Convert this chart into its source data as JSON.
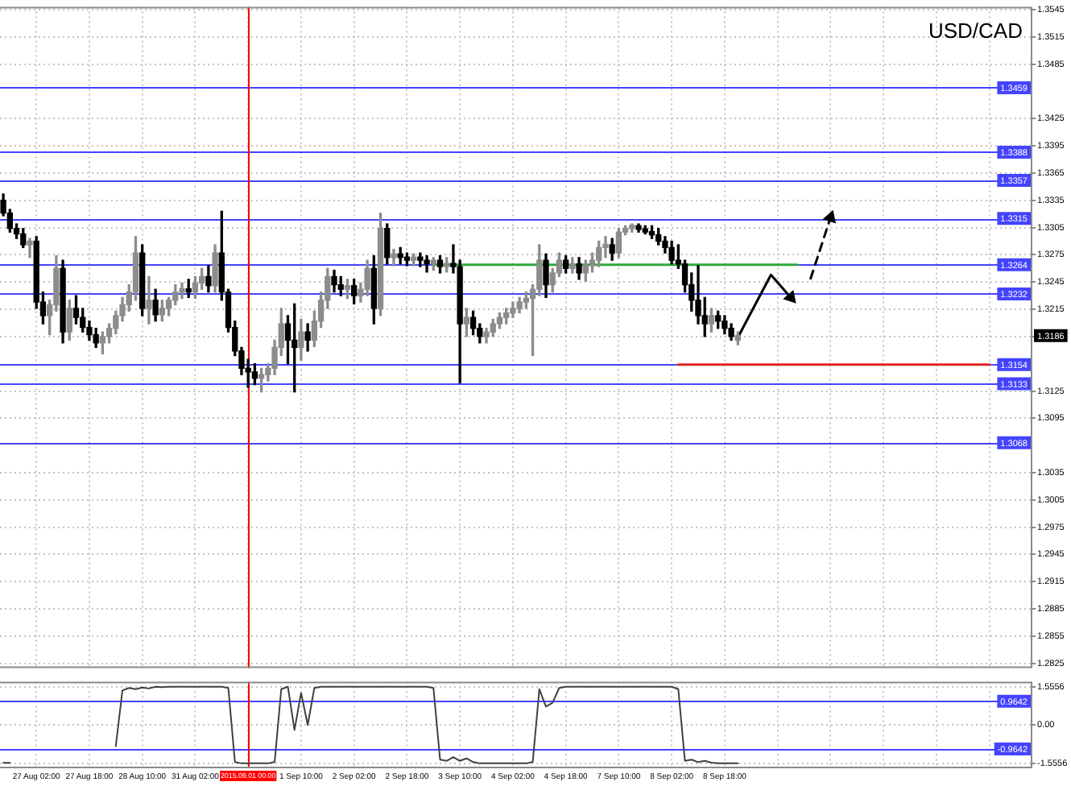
{
  "chart_data": [
    {
      "type": "candlestick",
      "title": "USD/CAD",
      "grid": true,
      "tick_labels": "y",
      "categories": [
        null,
        null,
        null,
        null,
        null,
        "27 Aug 02:00",
        null,
        null,
        null,
        null,
        null,
        null,
        null,
        "27 Aug 18:00",
        null,
        null,
        null,
        null,
        null,
        null,
        null,
        "28 Aug 10:00",
        null,
        null,
        null,
        null,
        null,
        null,
        null,
        "31 Aug 02:00",
        null,
        null,
        null,
        null,
        null,
        null,
        null,
        "2015.09.01 00:00",
        null,
        null,
        null,
        null,
        null,
        null,
        null,
        "1 Sep 10:00",
        null,
        null,
        null,
        null,
        null,
        null,
        null,
        "2 Sep 02:00",
        null,
        null,
        null,
        null,
        null,
        null,
        null,
        "2 Sep 18:00",
        null,
        null,
        null,
        null,
        null,
        null,
        null,
        "3 Sep 10:00",
        null,
        null,
        null,
        null,
        null,
        null,
        null,
        "4 Sep 02:00",
        null,
        null,
        null,
        null,
        null,
        null,
        null,
        "4 Sep 18:00",
        null,
        null,
        null,
        null,
        null,
        null,
        null,
        "7 Sep 10:00",
        null,
        null,
        null,
        null,
        null,
        null,
        null,
        "8 Sep 02:00",
        null,
        null,
        null,
        null,
        null,
        null,
        null,
        "8 Sep 18:00",
        null,
        null,
        null,
        null,
        null,
        null,
        null,
        null,
        null,
        null,
        null,
        null,
        null,
        null,
        null,
        null,
        null,
        null,
        null,
        null,
        null,
        null,
        null,
        null,
        null,
        null,
        null,
        null,
        null,
        null,
        null,
        null,
        null,
        null,
        null,
        null,
        null,
        null,
        null,
        null,
        null,
        null,
        null,
        null,
        null,
        null
      ],
      "ohlc": [
        [
          1.3335,
          1.3342,
          1.3318,
          1.3321
        ],
        [
          1.3321,
          1.3325,
          1.33,
          1.3304
        ],
        [
          1.3304,
          1.3309,
          1.3293,
          1.3298
        ],
        [
          1.3298,
          1.3304,
          1.3283,
          1.3286
        ],
        [
          1.3286,
          1.3293,
          1.3272,
          1.329
        ],
        [
          1.329,
          1.3295,
          1.3216,
          1.3223
        ],
        [
          1.3223,
          1.3234,
          1.3199,
          1.3208
        ],
        [
          1.3208,
          1.3225,
          1.3187,
          1.322
        ],
        [
          1.322,
          1.3274,
          1.3213,
          1.326
        ],
        [
          1.326,
          1.3269,
          1.3178,
          1.319
        ],
        [
          1.319,
          1.3225,
          1.3181,
          1.3216
        ],
        [
          1.3216,
          1.323,
          1.3199,
          1.3206
        ],
        [
          1.3206,
          1.3216,
          1.319,
          1.3195
        ],
        [
          1.3195,
          1.3202,
          1.3181,
          1.3187
        ],
        [
          1.3187,
          1.3194,
          1.3173,
          1.3178
        ],
        [
          1.3178,
          1.319,
          1.3166,
          1.3185
        ],
        [
          1.3185,
          1.3199,
          1.3178,
          1.3194
        ],
        [
          1.3194,
          1.3213,
          1.3188,
          1.3208
        ],
        [
          1.3208,
          1.3228,
          1.3202,
          1.322
        ],
        [
          1.322,
          1.3242,
          1.3213,
          1.3234
        ],
        [
          1.3234,
          1.3295,
          1.3225,
          1.3277
        ],
        [
          1.3277,
          1.3286,
          1.3208,
          1.3216
        ],
        [
          1.3216,
          1.3251,
          1.3199,
          1.3225
        ],
        [
          1.3225,
          1.3237,
          1.3202,
          1.3209
        ],
        [
          1.3209,
          1.3225,
          1.3202,
          1.3216
        ],
        [
          1.3216,
          1.3228,
          1.3208,
          1.3225
        ],
        [
          1.3225,
          1.3242,
          1.322,
          1.3234
        ],
        [
          1.3234,
          1.3244,
          1.3227,
          1.3237
        ],
        [
          1.3237,
          1.3248,
          1.3228,
          1.3234
        ],
        [
          1.3234,
          1.3251,
          1.3227,
          1.3244
        ],
        [
          1.3244,
          1.326,
          1.3237,
          1.3251
        ],
        [
          1.3251,
          1.3263,
          1.3234,
          1.3241
        ],
        [
          1.3241,
          1.3286,
          1.3234,
          1.3277
        ],
        [
          1.3277,
          1.3323,
          1.3225,
          1.3234
        ],
        [
          1.3234,
          1.3237,
          1.319,
          1.3195
        ],
        [
          1.3195,
          1.3202,
          1.3164,
          1.3169
        ],
        [
          1.3169,
          1.3173,
          1.3143,
          1.315
        ],
        [
          1.315,
          1.316,
          1.3129,
          1.3146
        ],
        [
          1.3146,
          1.3155,
          1.3132,
          1.3139
        ],
        [
          1.3139,
          1.315,
          1.3124,
          1.3143
        ],
        [
          1.3143,
          1.3155,
          1.3136,
          1.315
        ],
        [
          1.315,
          1.3181,
          1.3143,
          1.3173
        ],
        [
          1.3173,
          1.3216,
          1.3164,
          1.3199
        ],
        [
          1.3199,
          1.3208,
          1.3155,
          1.3181
        ],
        [
          1.3181,
          1.3221,
          1.3124,
          1.3173
        ],
        [
          1.3173,
          1.3204,
          1.3159,
          1.319
        ],
        [
          1.319,
          1.3199,
          1.3169,
          1.3181
        ],
        [
          1.3181,
          1.3213,
          1.3174,
          1.3202
        ],
        [
          1.3202,
          1.3234,
          1.3195,
          1.3225
        ],
        [
          1.3225,
          1.326,
          1.3216,
          1.3251
        ],
        [
          1.3251,
          1.3258,
          1.3234,
          1.3242
        ],
        [
          1.3242,
          1.3251,
          1.323,
          1.3237
        ],
        [
          1.3237,
          1.3248,
          1.3227,
          1.3241
        ],
        [
          1.3241,
          1.3248,
          1.3221,
          1.323
        ],
        [
          1.323,
          1.3244,
          1.3223,
          1.3237
        ],
        [
          1.3237,
          1.3269,
          1.323,
          1.326
        ],
        [
          1.326,
          1.3274,
          1.3199,
          1.3216
        ],
        [
          1.3216,
          1.3321,
          1.3208,
          1.3304
        ],
        [
          1.3304,
          1.3309,
          1.3265,
          1.3272
        ],
        [
          1.3272,
          1.3281,
          1.3263,
          1.3276
        ],
        [
          1.3276,
          1.3283,
          1.3265,
          1.3272
        ],
        [
          1.3272,
          1.3277,
          1.3263,
          1.3269
        ],
        [
          1.3269,
          1.3276,
          1.3263,
          1.3272
        ],
        [
          1.3272,
          1.3277,
          1.3262,
          1.3269
        ],
        [
          1.3269,
          1.3274,
          1.3256,
          1.3265
        ],
        [
          1.3265,
          1.3272,
          1.3258,
          1.3269
        ],
        [
          1.3269,
          1.3274,
          1.3255,
          1.3262
        ],
        [
          1.3262,
          1.3272,
          1.3256,
          1.3265
        ],
        [
          1.3265,
          1.3286,
          1.3255,
          1.3262
        ],
        [
          1.3262,
          1.3269,
          1.3134,
          1.3199
        ],
        [
          1.3199,
          1.3216,
          1.3185,
          1.3206
        ],
        [
          1.3206,
          1.3213,
          1.3187,
          1.3194
        ],
        [
          1.3194,
          1.3199,
          1.3178,
          1.3185
        ],
        [
          1.3185,
          1.3194,
          1.3178,
          1.319
        ],
        [
          1.319,
          1.3204,
          1.3185,
          1.3199
        ],
        [
          1.3199,
          1.3211,
          1.3194,
          1.3206
        ],
        [
          1.3206,
          1.3216,
          1.3199,
          1.3211
        ],
        [
          1.3211,
          1.3223,
          1.3206,
          1.3216
        ],
        [
          1.3216,
          1.3228,
          1.3211,
          1.3223
        ],
        [
          1.3223,
          1.3234,
          1.3216,
          1.3227
        ],
        [
          1.3227,
          1.3242,
          1.3164,
          1.3237
        ],
        [
          1.3237,
          1.3286,
          1.323,
          1.3269
        ],
        [
          1.3269,
          1.3276,
          1.3228,
          1.3242
        ],
        [
          1.3242,
          1.326,
          1.3234,
          1.3255
        ],
        [
          1.3255,
          1.3277,
          1.3251,
          1.3269
        ],
        [
          1.3269,
          1.3274,
          1.3255,
          1.326
        ],
        [
          1.326,
          1.3272,
          1.3255,
          1.3265
        ],
        [
          1.3265,
          1.3272,
          1.3248,
          1.3255
        ],
        [
          1.3255,
          1.3269,
          1.3246,
          1.3263
        ],
        [
          1.3263,
          1.3277,
          1.3256,
          1.3269
        ],
        [
          1.3269,
          1.329,
          1.3262,
          1.3283
        ],
        [
          1.3283,
          1.3295,
          1.3272,
          1.3286
        ],
        [
          1.3286,
          1.3293,
          1.3269,
          1.3277
        ],
        [
          1.3277,
          1.3304,
          1.3272,
          1.33
        ],
        [
          1.33,
          1.3307,
          1.3297,
          1.3304
        ],
        [
          1.3304,
          1.3309,
          1.33,
          1.3307
        ],
        [
          1.3307,
          1.3309,
          1.33,
          1.3303
        ],
        [
          1.3303,
          1.3307,
          1.3298,
          1.33
        ],
        [
          1.33,
          1.3307,
          1.3293,
          1.3297
        ],
        [
          1.3297,
          1.3304,
          1.3286,
          1.329
        ],
        [
          1.329,
          1.3295,
          1.3277,
          1.3283
        ],
        [
          1.3283,
          1.329,
          1.3265,
          1.3269
        ],
        [
          1.3269,
          1.3286,
          1.326,
          1.3265
        ],
        [
          1.3265,
          1.3269,
          1.3234,
          1.3242
        ],
        [
          1.3242,
          1.3255,
          1.3213,
          1.3225
        ],
        [
          1.3225,
          1.3263,
          1.3199,
          1.3208
        ],
        [
          1.3208,
          1.3228,
          1.3185,
          1.3199
        ],
        [
          1.3199,
          1.3216,
          1.319,
          1.3208
        ],
        [
          1.3208,
          1.3213,
          1.3194,
          1.3202
        ],
        [
          1.3202,
          1.3208,
          1.3188,
          1.3194
        ],
        [
          1.3194,
          1.3199,
          1.3181,
          1.3185
        ],
        [
          1.3181,
          1.319,
          1.3176,
          1.3186
        ],
        null,
        null,
        null,
        null,
        null,
        null,
        null,
        null,
        null,
        null,
        null,
        null,
        null,
        null,
        null,
        null,
        null,
        null,
        null,
        null,
        null,
        null,
        null,
        null,
        null,
        null,
        null,
        null,
        null,
        null,
        null,
        null,
        null,
        null,
        null,
        null,
        null,
        null,
        null,
        null,
        null,
        null,
        null,
        null
      ],
      "colors": [
        "#000000",
        "#000000",
        "#000000",
        "#000000",
        "#8c8c8c",
        "#000000",
        "#000000",
        "#8c8c8c",
        "#8c8c8c",
        "#000000",
        "#8c8c8c",
        "#000000",
        "#000000",
        "#000000",
        "#000000",
        "#8c8c8c",
        "#8c8c8c",
        "#8c8c8c",
        "#8c8c8c",
        "#8c8c8c",
        "#8c8c8c",
        "#000000",
        "#8c8c8c",
        "#000000",
        "#8c8c8c",
        "#8c8c8c",
        "#8c8c8c",
        "#8c8c8c",
        "#000000",
        "#8c8c8c",
        "#8c8c8c",
        "#000000",
        "#8c8c8c",
        "#000000",
        "#000000",
        "#000000",
        "#000000",
        "#000000",
        "#000000",
        "#8c8c8c",
        "#8c8c8c",
        "#8c8c8c",
        "#8c8c8c",
        "#000000",
        "#000000",
        "#8c8c8c",
        "#000000",
        "#8c8c8c",
        "#8c8c8c",
        "#8c8c8c",
        "#000000",
        "#000000",
        "#8c8c8c",
        "#000000",
        "#8c8c8c",
        "#8c8c8c",
        "#000000",
        "#8c8c8c",
        "#000000",
        "#8c8c8c",
        "#000000",
        "#000000",
        "#8c8c8c",
        "#000000",
        "#000000",
        "#8c8c8c",
        "#000000",
        "#8c8c8c",
        "#000000",
        "#000000",
        "#8c8c8c",
        "#000000",
        "#000000",
        "#8c8c8c",
        "#8c8c8c",
        "#8c8c8c",
        "#8c8c8c",
        "#8c8c8c",
        "#8c8c8c",
        "#8c8c8c",
        "#8c8c8c",
        "#8c8c8c",
        "#000000",
        "#8c8c8c",
        "#8c8c8c",
        "#000000",
        "#8c8c8c",
        "#000000",
        "#8c8c8c",
        "#8c8c8c",
        "#8c8c8c",
        "#8c8c8c",
        "#000000",
        "#8c8c8c",
        "#8c8c8c",
        "#8c8c8c",
        "#000000",
        "#000000",
        "#000000",
        "#000000",
        "#000000",
        "#000000",
        "#000000",
        "#000000",
        "#000000",
        "#000000",
        "#000000",
        "#8c8c8c",
        "#000000",
        "#000000",
        "#000000",
        "#8c8c8c",
        null,
        null,
        null,
        null,
        null,
        null,
        null,
        null,
        null,
        null,
        null,
        null,
        null,
        null,
        null,
        null,
        null,
        null,
        null,
        null,
        null,
        null,
        null,
        null,
        null,
        null,
        null,
        null,
        null,
        null,
        null,
        null,
        null,
        null,
        null,
        null,
        null,
        null,
        null,
        null,
        null,
        null,
        null,
        null
      ],
      "series": [
        {
          "type": "line",
          "color": "#2eaa3a",
          "values": [
            null,
            null,
            null,
            null,
            null,
            null,
            null,
            null,
            null,
            null,
            null,
            null,
            null,
            null,
            null,
            null,
            null,
            null,
            null,
            null,
            null,
            null,
            null,
            null,
            null,
            null,
            null,
            null,
            null,
            null,
            null,
            null,
            null,
            null,
            null,
            null,
            null,
            null,
            null,
            null,
            null,
            null,
            null,
            null,
            null,
            null,
            null,
            null,
            null,
            null,
            null,
            null,
            null,
            null,
            null,
            null,
            null,
            null,
            null,
            null,
            null,
            null,
            null,
            null,
            null,
            1.3264,
            null,
            null,
            null,
            null,
            null,
            null,
            null,
            null,
            null,
            null,
            null,
            null,
            null,
            null,
            null,
            null,
            null,
            null,
            null,
            null,
            null,
            null,
            null,
            null,
            null,
            null,
            null,
            null,
            null,
            null,
            null,
            null,
            null,
            null,
            null,
            null,
            null,
            null,
            null,
            null,
            null,
            null,
            null,
            null,
            null,
            null,
            null,
            null,
            null,
            null,
            null,
            null,
            null,
            null,
            1.3264,
            null,
            null,
            null,
            null,
            null,
            null,
            null,
            null,
            null,
            null,
            null,
            null,
            null,
            null,
            null,
            null,
            null,
            null,
            null,
            null,
            null,
            null,
            null,
            null,
            null,
            null,
            null,
            null,
            null,
            null,
            null,
            null,
            null,
            null,
            null
          ]
        },
        {
          "type": "line",
          "color": "#e02424",
          "values": [
            null,
            null,
            null,
            null,
            null,
            null,
            null,
            null,
            null,
            null,
            null,
            null,
            null,
            null,
            null,
            null,
            null,
            null,
            null,
            null,
            null,
            null,
            null,
            null,
            null,
            null,
            null,
            null,
            null,
            null,
            null,
            null,
            null,
            null,
            null,
            null,
            null,
            null,
            null,
            null,
            null,
            null,
            null,
            null,
            null,
            null,
            null,
            null,
            null,
            null,
            null,
            null,
            null,
            null,
            null,
            null,
            null,
            null,
            null,
            null,
            null,
            null,
            null,
            null,
            null,
            null,
            null,
            null,
            null,
            null,
            null,
            null,
            null,
            null,
            null,
            null,
            null,
            null,
            null,
            null,
            null,
            null,
            null,
            null,
            null,
            null,
            null,
            null,
            null,
            null,
            null,
            null,
            null,
            null,
            null,
            null,
            null,
            null,
            null,
            null,
            null,
            null,
            1.3154,
            null,
            null,
            null,
            null,
            null,
            null,
            null,
            null,
            null,
            null,
            null,
            null,
            null,
            null,
            null,
            null,
            null,
            null,
            null,
            null,
            null,
            null,
            null,
            null,
            null,
            null,
            null,
            null,
            null,
            null,
            null,
            null,
            null,
            null,
            null,
            null,
            null,
            null,
            null,
            null,
            null,
            null,
            null,
            null,
            null,
            null,
            1.3154,
            null,
            null,
            null,
            null,
            null,
            null
          ]
        },
        {
          "type": "line",
          "color": "#000000",
          "values": [
            null,
            null,
            null,
            null,
            null,
            null,
            null,
            null,
            null,
            null,
            null,
            null,
            null,
            null,
            null,
            null,
            null,
            null,
            null,
            null,
            null,
            null,
            null,
            null,
            null,
            null,
            null,
            null,
            null,
            null,
            null,
            null,
            null,
            null,
            null,
            null,
            null,
            null,
            null,
            null,
            null,
            null,
            null,
            null,
            null,
            null,
            null,
            null,
            null,
            null,
            null,
            null,
            null,
            null,
            null,
            null,
            null,
            null,
            null,
            null,
            null,
            null,
            null,
            null,
            null,
            null,
            null,
            null,
            null,
            null,
            null,
            null,
            null,
            null,
            null,
            null,
            null,
            null,
            null,
            null,
            null,
            null,
            null,
            null,
            null,
            null,
            null,
            null,
            null,
            null,
            null,
            null,
            null,
            null,
            null,
            null,
            null,
            null,
            null,
            null,
            null,
            null,
            null,
            null,
            null,
            null,
            null,
            null,
            null,
            null,
            null,
            1.3184,
            null,
            null,
            null,
            null,
            1.3253,
            null,
            null,
            1.3228,
            null,
            null,
            null,
            null,
            null,
            null,
            null,
            null,
            null,
            null,
            null,
            null,
            null,
            null,
            null,
            null,
            null,
            null,
            null,
            null,
            null,
            null,
            null,
            null,
            null,
            null,
            null,
            null,
            null,
            null,
            null,
            null,
            null,
            null,
            null,
            null
          ]
        },
        {
          "type": "line",
          "color": "#000000",
          "line_style": "dashed",
          "values": [
            null,
            null,
            null,
            null,
            null,
            null,
            null,
            null,
            null,
            null,
            null,
            null,
            null,
            null,
            null,
            null,
            null,
            null,
            null,
            null,
            null,
            null,
            null,
            null,
            null,
            null,
            null,
            null,
            null,
            null,
            null,
            null,
            null,
            null,
            null,
            null,
            null,
            null,
            null,
            null,
            null,
            null,
            null,
            null,
            null,
            null,
            null,
            null,
            null,
            null,
            null,
            null,
            null,
            null,
            null,
            null,
            null,
            null,
            null,
            null,
            null,
            null,
            null,
            null,
            null,
            null,
            null,
            null,
            null,
            null,
            null,
            null,
            null,
            null,
            null,
            null,
            null,
            null,
            null,
            null,
            null,
            null,
            null,
            null,
            null,
            null,
            null,
            null,
            null,
            null,
            null,
            null,
            null,
            null,
            null,
            null,
            null,
            null,
            null,
            null,
            null,
            null,
            null,
            null,
            null,
            null,
            null,
            null,
            null,
            null,
            null,
            null,
            null,
            null,
            null,
            null,
            null,
            null,
            null,
            null,
            null,
            null,
            1.3249,
            null,
            null,
            1.3316,
            null,
            null,
            null,
            null,
            null,
            null,
            null,
            null,
            null,
            null,
            null,
            null,
            null,
            null,
            null,
            null,
            null,
            null,
            null,
            null,
            null,
            null,
            null,
            null,
            null,
            null,
            null,
            null,
            null,
            null
          ]
        }
      ],
      "ylim": [
        1.282,
        1.3548
      ],
      "yticks": [
        1.3545,
        1.3515,
        1.3485,
        1.3425,
        1.3395,
        1.3365,
        1.3335,
        1.3305,
        1.3275,
        1.3245,
        1.3215,
        {
          "value": 1.3185,
          "label": null
        },
        1.3125,
        1.3095,
        1.3035,
        1.3005,
        1.2975,
        1.2945,
        1.2915,
        1.2885,
        1.2855,
        1.2825
      ],
      "ref_lines": [
        {
          "axis": "y",
          "value": 1.3459,
          "label": "1.3459",
          "color": "#4444ff"
        },
        {
          "axis": "y",
          "value": 1.3388,
          "label": "1.3388",
          "color": "#4444ff"
        },
        {
          "axis": "y",
          "value": 1.3357,
          "label": "1.3357",
          "color": "#4444ff"
        },
        {
          "axis": "y",
          "value": 1.3315,
          "label": "1.3315",
          "color": "#4444ff"
        },
        {
          "axis": "y",
          "value": 1.3264,
          "label": "1.3264",
          "color": "#4444ff"
        },
        {
          "axis": "y",
          "value": 1.3232,
          "label": "1.3232",
          "color": "#4444ff"
        },
        {
          "axis": "y",
          "value": 1.3154,
          "label": "1.3154",
          "color": "#4444ff"
        },
        {
          "axis": "y",
          "value": 1.3133,
          "label": "1.3133",
          "color": "#4444ff"
        },
        {
          "axis": "y",
          "value": 1.3068,
          "label": "1.3068",
          "color": "#4444ff"
        },
        {
          "axis": "x",
          "value": "2015.09.01 00:00",
          "color": "#ff0000"
        }
      ],
      "annotations": [
        {
          "text": "1.3186",
          "y": 1.3186
        }
      ]
    },
    {
      "type": "line",
      "marker": "none",
      "grid": true,
      "categories": [
        null,
        null,
        null,
        null,
        null,
        "27 Aug 02:00",
        null,
        null,
        null,
        null,
        null,
        null,
        null,
        "27 Aug 18:00",
        null,
        null,
        null,
        null,
        null,
        null,
        null,
        "28 Aug 10:00",
        null,
        null,
        null,
        null,
        null,
        null,
        null,
        "31 Aug 02:00",
        null,
        null,
        null,
        null,
        null,
        null,
        null,
        "2015.09.01 00:00",
        null,
        null,
        null,
        null,
        null,
        null,
        null,
        "1 Sep 10:00",
        null,
        null,
        null,
        null,
        null,
        null,
        null,
        "2 Sep 02:00",
        null,
        null,
        null,
        null,
        null,
        null,
        null,
        "2 Sep 18:00",
        null,
        null,
        null,
        null,
        null,
        null,
        null,
        "3 Sep 10:00",
        null,
        null,
        null,
        null,
        null,
        null,
        null,
        "4 Sep 02:00",
        null,
        null,
        null,
        null,
        null,
        null,
        null,
        "4 Sep 18:00",
        null,
        null,
        null,
        null,
        null,
        null,
        null,
        "7 Sep 10:00",
        null,
        null,
        null,
        null,
        null,
        null,
        null,
        "8 Sep 02:00",
        null,
        null,
        null,
        null,
        null,
        null,
        null,
        "8 Sep 18:00",
        null,
        null,
        null,
        null,
        null,
        null,
        null,
        null,
        null,
        null,
        null,
        null,
        null,
        null,
        null,
        null,
        null,
        null,
        null,
        null,
        null,
        null,
        null,
        null,
        null,
        null,
        null,
        null,
        null,
        null,
        null,
        null,
        null,
        null,
        null,
        null,
        null,
        null,
        null,
        null,
        null,
        null,
        null,
        null,
        null,
        null
      ],
      "series": [
        {
          "color": "#404040",
          "values": [
            -1.53,
            -1.53,
            null,
            null,
            null,
            null,
            null,
            null,
            null,
            null,
            null,
            null,
            null,
            null,
            null,
            null,
            null,
            -0.85,
            1.4,
            1.5,
            1.45,
            1.52,
            1.48,
            1.55,
            1.53,
            1.55,
            1.55,
            1.55,
            1.55,
            1.55,
            1.55,
            1.55,
            1.55,
            1.55,
            1.5,
            -1.5,
            -1.55,
            -1.55,
            -1.55,
            -1.55,
            -1.55,
            -1.5,
            1.45,
            1.55,
            -0.2,
            1.3,
            0,
            1.5,
            1.55,
            1.55,
            1.55,
            1.55,
            1.55,
            1.55,
            1.55,
            1.55,
            1.55,
            1.55,
            1.55,
            1.55,
            1.55,
            1.55,
            1.55,
            1.55,
            1.55,
            1.5,
            -1.4,
            -1.45,
            -1.3,
            -1.45,
            -1.35,
            -1.5,
            -1.55,
            -1.55,
            -1.55,
            -1.55,
            -1.55,
            -1.55,
            -1.55,
            -1.55,
            -1.5,
            1.45,
            0.75,
            0.9,
            1.5,
            1.55,
            1.55,
            1.55,
            1.55,
            1.55,
            1.55,
            1.55,
            1.55,
            1.55,
            1.55,
            1.55,
            1.55,
            1.55,
            1.55,
            1.55,
            1.55,
            1.55,
            1.45,
            -1.45,
            -1.4,
            -1.5,
            -1.45,
            -1.52,
            -1.55,
            -1.55,
            -1.55,
            -1.55,
            null,
            null,
            null,
            null,
            null,
            null,
            null,
            null,
            null,
            null,
            null,
            null,
            null,
            null,
            null,
            null,
            null,
            null,
            null,
            null,
            null,
            null,
            null,
            null,
            null,
            null,
            null,
            null,
            null,
            null,
            null,
            null,
            null,
            null,
            null,
            null,
            null,
            null,
            null,
            null,
            null,
            null,
            null,
            null
          ]
        }
      ],
      "ylim": [
        -1.75,
        1.75
      ],
      "yticks": [
        1.5556,
        {
          "value": 0,
          "label": "0.00"
        },
        -1.5556
      ],
      "ref_lines": [
        {
          "axis": "y",
          "value": 0.9642,
          "label": "0.9642",
          "color": "#4444ff"
        },
        {
          "axis": "y",
          "value": -0.9642,
          "label": "-0.9642",
          "color": "#4444ff"
        },
        {
          "axis": "x",
          "value": "2015.09.01 00:00",
          "color": "#ff0000"
        }
      ]
    }
  ]
}
